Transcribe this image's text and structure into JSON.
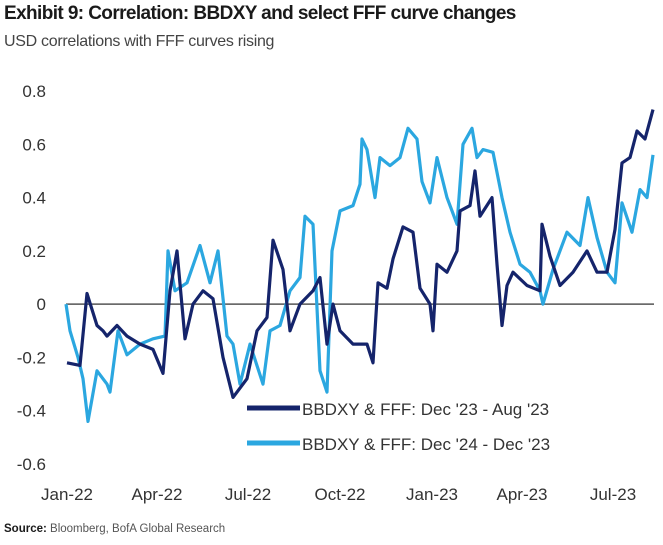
{
  "title": "Exhibit 9: Correlation: BBDXY and select FFF curve changes",
  "subtitle": "USD correlations with FFF curves rising",
  "source_label": "Source:",
  "source_text": "Bloomberg, BofA Global Research",
  "chart_data": {
    "type": "line",
    "title": "Exhibit 9: Correlation: BBDXY and select FFF curve changes",
    "subtitle": "USD correlations with FFF curves rising",
    "xlabel": "",
    "ylabel": "",
    "ylim": [
      -0.6,
      0.8
    ],
    "yticks": [
      0.8,
      0.6,
      0.4,
      0.2,
      0,
      -0.2,
      -0.4,
      -0.6
    ],
    "ytick_labels": [
      "0.8",
      "0.6",
      "0.4",
      "0.2",
      "0",
      "-0.2",
      "-0.4",
      "-0.6"
    ],
    "xlim": [
      "2022-01-01",
      "2023-08-12"
    ],
    "xticks": [
      "2022-01-01",
      "2022-04-01",
      "2022-07-01",
      "2022-10-01",
      "2023-01-01",
      "2023-04-01",
      "2023-07-01"
    ],
    "xtick_labels": [
      "Jan-22",
      "Apr-22",
      "Jul-22",
      "Oct-22",
      "Jan-23",
      "Apr-23",
      "Jul-23"
    ],
    "zero_line": true,
    "grid": false,
    "legend_position": "bottom-center",
    "series": [
      {
        "name": "BBDXY & FFF: Dec '23 - Aug '23",
        "color": "#15246b",
        "points": [
          [
            "2022-01-02",
            -0.22
          ],
          [
            "2022-01-15",
            -0.23
          ],
          [
            "2022-01-22",
            0.04
          ],
          [
            "2022-02-01",
            -0.08
          ],
          [
            "2022-02-07",
            -0.1
          ],
          [
            "2022-02-11",
            -0.12
          ],
          [
            "2022-02-21",
            -0.08
          ],
          [
            "2022-03-03",
            -0.12
          ],
          [
            "2022-03-16",
            -0.15
          ],
          [
            "2022-03-29",
            -0.17
          ],
          [
            "2022-04-08",
            -0.26
          ],
          [
            "2022-04-15",
            0.05
          ],
          [
            "2022-04-22",
            0.2
          ],
          [
            "2022-04-30",
            -0.13
          ],
          [
            "2022-05-08",
            0.0
          ],
          [
            "2022-05-18",
            0.05
          ],
          [
            "2022-05-28",
            0.02
          ],
          [
            "2022-06-07",
            -0.2
          ],
          [
            "2022-06-17",
            -0.35
          ],
          [
            "2022-07-01",
            -0.28
          ],
          [
            "2022-07-11",
            -0.1
          ],
          [
            "2022-07-21",
            -0.05
          ],
          [
            "2022-07-27",
            0.24
          ],
          [
            "2022-08-06",
            0.13
          ],
          [
            "2022-08-13",
            -0.1
          ],
          [
            "2022-08-23",
            0.0
          ],
          [
            "2022-09-05",
            0.05
          ],
          [
            "2022-09-12",
            0.1
          ],
          [
            "2022-09-19",
            -0.15
          ],
          [
            "2022-09-25",
            0.0
          ],
          [
            "2022-10-02",
            -0.1
          ],
          [
            "2022-10-15",
            -0.15
          ],
          [
            "2022-10-29",
            -0.15
          ],
          [
            "2022-11-04",
            -0.22
          ],
          [
            "2022-11-09",
            0.08
          ],
          [
            "2022-11-18",
            0.06
          ],
          [
            "2022-11-24",
            0.17
          ],
          [
            "2022-12-04",
            0.29
          ],
          [
            "2022-12-14",
            0.27
          ],
          [
            "2022-12-21",
            0.06
          ],
          [
            "2022-12-31",
            0.0
          ],
          [
            "2023-01-03",
            -0.1
          ],
          [
            "2023-01-07",
            0.15
          ],
          [
            "2023-01-17",
            0.12
          ],
          [
            "2023-01-27",
            0.2
          ],
          [
            "2023-01-30",
            0.35
          ],
          [
            "2023-02-09",
            0.37
          ],
          [
            "2023-02-14",
            0.5
          ],
          [
            "2023-02-19",
            0.33
          ],
          [
            "2023-03-03",
            0.4
          ],
          [
            "2023-03-08",
            0.15
          ],
          [
            "2023-03-13",
            -0.08
          ],
          [
            "2023-03-18",
            0.07
          ],
          [
            "2023-03-24",
            0.12
          ],
          [
            "2023-04-07",
            0.07
          ],
          [
            "2023-04-20",
            0.05
          ],
          [
            "2023-04-22",
            0.3
          ],
          [
            "2023-04-30",
            0.18
          ],
          [
            "2023-05-10",
            0.07
          ],
          [
            "2023-05-23",
            0.12
          ],
          [
            "2023-06-06",
            0.2
          ],
          [
            "2023-06-16",
            0.12
          ],
          [
            "2023-06-26",
            0.12
          ],
          [
            "2023-07-04",
            0.28
          ],
          [
            "2023-07-11",
            0.53
          ],
          [
            "2023-07-19",
            0.55
          ],
          [
            "2023-07-26",
            0.65
          ],
          [
            "2023-08-03",
            0.62
          ],
          [
            "2023-08-11",
            0.73
          ]
        ]
      },
      {
        "name": "BBDXY & FFF: Dec '24 - Dec '23",
        "color": "#2ba7e0",
        "points": [
          [
            "2022-01-01",
            0.0
          ],
          [
            "2022-01-05",
            -0.1
          ],
          [
            "2022-01-13",
            -0.2
          ],
          [
            "2022-01-18",
            -0.28
          ],
          [
            "2022-01-23",
            -0.44
          ],
          [
            "2022-02-01",
            -0.25
          ],
          [
            "2022-02-11",
            -0.3
          ],
          [
            "2022-02-14",
            -0.33
          ],
          [
            "2022-02-22",
            -0.1
          ],
          [
            "2022-03-03",
            -0.19
          ],
          [
            "2022-03-16",
            -0.15
          ],
          [
            "2022-03-29",
            -0.13
          ],
          [
            "2022-04-10",
            -0.12
          ],
          [
            "2022-04-13",
            0.2
          ],
          [
            "2022-04-20",
            0.05
          ],
          [
            "2022-05-02",
            0.08
          ],
          [
            "2022-05-15",
            0.22
          ],
          [
            "2022-05-25",
            0.08
          ],
          [
            "2022-06-02",
            0.2
          ],
          [
            "2022-06-11",
            -0.12
          ],
          [
            "2022-06-17",
            -0.15
          ],
          [
            "2022-06-24",
            -0.3
          ],
          [
            "2022-07-04",
            -0.15
          ],
          [
            "2022-07-17",
            -0.3
          ],
          [
            "2022-07-24",
            -0.1
          ],
          [
            "2022-08-03",
            -0.08
          ],
          [
            "2022-08-13",
            0.05
          ],
          [
            "2022-08-23",
            0.1
          ],
          [
            "2022-08-28",
            0.33
          ],
          [
            "2022-09-05",
            0.3
          ],
          [
            "2022-09-12",
            -0.25
          ],
          [
            "2022-09-19",
            -0.33
          ],
          [
            "2022-09-24",
            0.2
          ],
          [
            "2022-10-02",
            0.35
          ],
          [
            "2022-10-15",
            0.37
          ],
          [
            "2022-10-22",
            0.45
          ],
          [
            "2022-10-24",
            0.62
          ],
          [
            "2022-10-29",
            0.58
          ],
          [
            "2022-11-06",
            0.4
          ],
          [
            "2022-11-11",
            0.55
          ],
          [
            "2022-11-21",
            0.52
          ],
          [
            "2022-12-01",
            0.55
          ],
          [
            "2022-12-09",
            0.66
          ],
          [
            "2022-12-18",
            0.62
          ],
          [
            "2022-12-23",
            0.46
          ],
          [
            "2022-12-31",
            0.38
          ],
          [
            "2023-01-07",
            0.55
          ],
          [
            "2023-01-17",
            0.4
          ],
          [
            "2023-01-27",
            0.3
          ],
          [
            "2023-02-02",
            0.6
          ],
          [
            "2023-02-11",
            0.66
          ],
          [
            "2023-02-16",
            0.55
          ],
          [
            "2023-02-22",
            0.58
          ],
          [
            "2023-03-04",
            0.57
          ],
          [
            "2023-03-13",
            0.4
          ],
          [
            "2023-03-21",
            0.27
          ],
          [
            "2023-03-31",
            0.15
          ],
          [
            "2023-04-10",
            0.12
          ],
          [
            "2023-04-20",
            0.05
          ],
          [
            "2023-04-23",
            0.0
          ],
          [
            "2023-05-03",
            0.13
          ],
          [
            "2023-05-17",
            0.27
          ],
          [
            "2023-05-30",
            0.22
          ],
          [
            "2023-06-07",
            0.4
          ],
          [
            "2023-06-16",
            0.25
          ],
          [
            "2023-06-26",
            0.12
          ],
          [
            "2023-07-04",
            0.08
          ],
          [
            "2023-07-11",
            0.38
          ],
          [
            "2023-07-21",
            0.27
          ],
          [
            "2023-07-29",
            0.43
          ],
          [
            "2023-08-05",
            0.4
          ],
          [
            "2023-08-11",
            0.56
          ]
        ]
      }
    ]
  }
}
